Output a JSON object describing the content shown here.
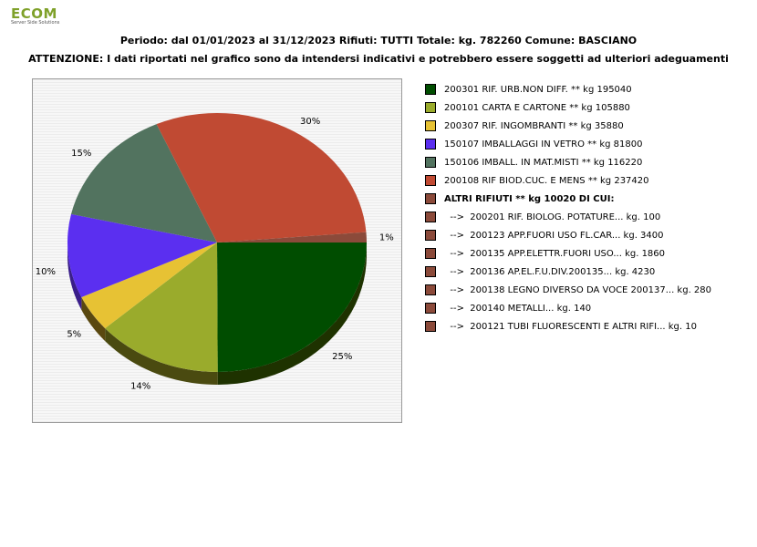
{
  "logo": {
    "text": "ECOM",
    "tagline": "Server Side Solutions"
  },
  "header": {
    "line1": "Periodo: dal 01/01/2023 al 31/12/2023 Rifiuti: TUTTI   Totale: kg. 782260    Comune: BASCIANO",
    "line2": "ATTENZIONE: I dati riportati nel grafico sono da intendersi indicativi e potrebbero essere soggetti ad ulteriori adeguamenti"
  },
  "chart_data": {
    "type": "pie",
    "slices": [
      {
        "label": "200301 RIF. URB.NON DIFF. ** kg 195040",
        "value": 195040,
        "pct_label": "25%",
        "color": "#004d00",
        "side": "#1e3200"
      },
      {
        "label": "200101 CARTA E CARTONE ** kg 105880",
        "value": 105880,
        "pct_label": "14%",
        "color": "#9aab2c",
        "side": "#4a4a10"
      },
      {
        "label": "200307 RIF. INGOMBRANTI ** kg 35880",
        "value": 35880,
        "pct_label": "5%",
        "color": "#e7c234",
        "side": "#5a4810"
      },
      {
        "label": "150107 IMBALLAGGI IN VETRO ** kg 81800",
        "value": 81800,
        "pct_label": "10%",
        "color": "#5b2ff0",
        "side": "#3a1e8a"
      },
      {
        "label": "150106 IMBALL. IN MAT.MISTI ** kg 116220",
        "value": 116220,
        "pct_label": "15%",
        "color": "#52735f",
        "side": "#30443a"
      },
      {
        "label": "200108 RIF BIOD.CUC. E MENS ** kg 237420",
        "value": 237420,
        "pct_label": "30%",
        "color": "#c04a33",
        "side": "#6a2818"
      },
      {
        "label": "ALTRI RIFIUTI ** kg 10020 DI CUI:",
        "value": 10020,
        "pct_label": "1%",
        "color": "#8b4a3a",
        "side": "#4a2018"
      }
    ],
    "legend_extra": [
      {
        "label": "  -->  200201 RIF. BIOLOG. POTATURE... kg. 100",
        "color": "#8b4a3a"
      },
      {
        "label": "  -->  200123 APP.FUORI USO FL.CAR... kg. 3400",
        "color": "#8b4a3a"
      },
      {
        "label": "  -->  200135 APP.ELETTR.FUORI USO... kg. 1860",
        "color": "#8b4a3a"
      },
      {
        "label": "  -->  200136 AP.EL.F.U.DIV.200135... kg. 4230",
        "color": "#8b4a3a"
      },
      {
        "label": "  -->  200138 LEGNO DIVERSO DA VOCE 200137... kg. 280",
        "color": "#8b4a3a"
      },
      {
        "label": "  -->  200140 METALLI... kg. 140",
        "color": "#8b4a3a"
      },
      {
        "label": "  -->  200121 TUBI FLUORESCENTI E ALTRI RIFI... kg. 10",
        "color": "#8b4a3a"
      }
    ],
    "total": 782260,
    "legend_placement": "right"
  }
}
